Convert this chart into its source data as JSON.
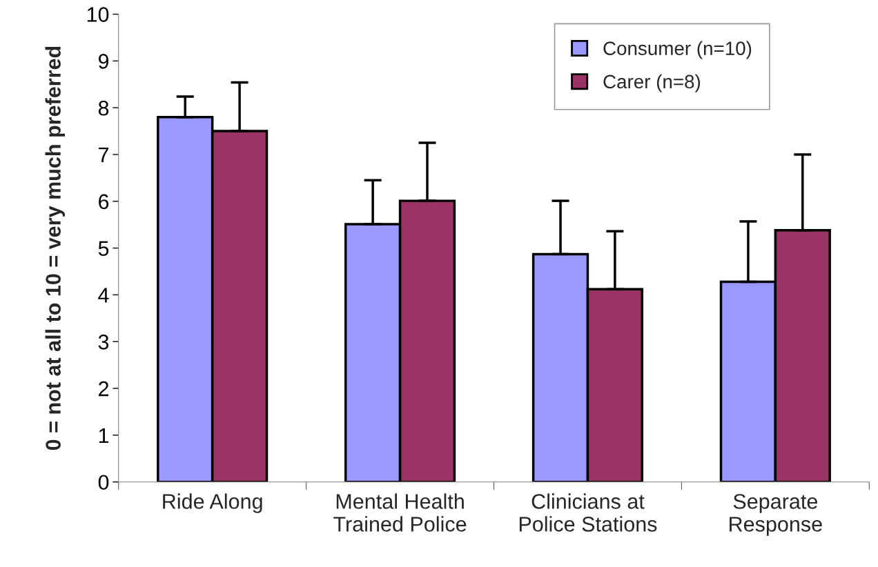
{
  "chart_data": {
    "type": "bar",
    "ylabel": "0 = not at all to 10 = very much preferred",
    "categories": [
      "Ride Along",
      "Mental Health\nTrained Police",
      "Clinicians at\nPolice Stations",
      "Separate\nResponse"
    ],
    "series": [
      {
        "name": "Consumer (n=10)",
        "color": "#9999ff",
        "values": [
          7.8,
          5.51,
          4.87,
          4.28
        ],
        "errors": [
          [
            7.8,
            8.24
          ],
          [
            5.51,
            6.45
          ],
          [
            4.87,
            6.01
          ],
          [
            4.28,
            5.57
          ]
        ]
      },
      {
        "name": "Carer (n=8)",
        "color": "#993366",
        "values": [
          7.5,
          6.01,
          4.12,
          5.38
        ],
        "errors": [
          [
            7.5,
            8.54
          ],
          [
            6.01,
            7.25
          ],
          [
            4.12,
            5.36
          ],
          [
            5.38,
            7.0
          ]
        ]
      }
    ],
    "ylim": [
      0,
      10
    ],
    "yticks": [
      0,
      1,
      2,
      3,
      4,
      5,
      6,
      7,
      8,
      9,
      10
    ],
    "grid": false,
    "legend": "top right"
  }
}
